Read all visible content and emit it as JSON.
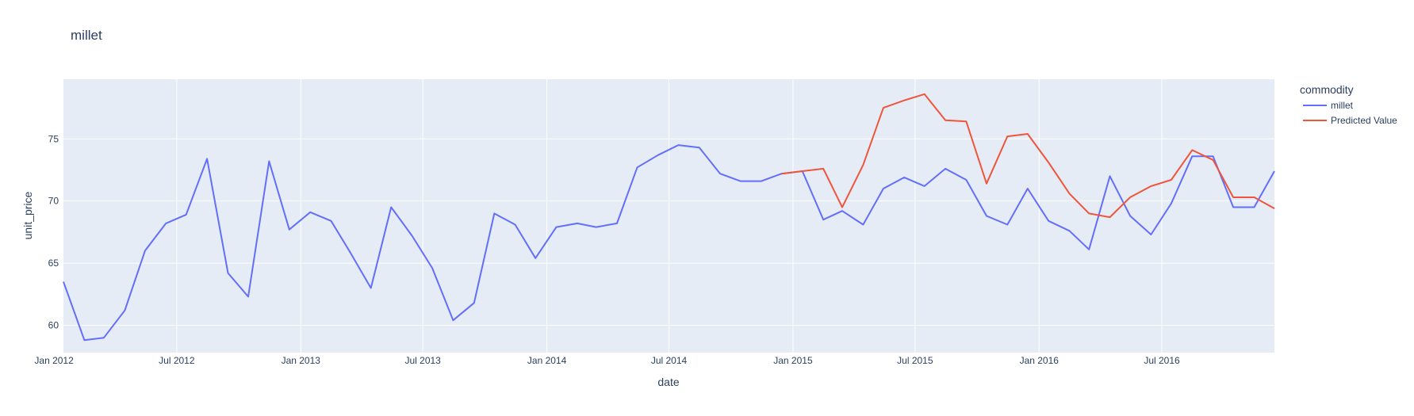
{
  "chart_data": {
    "type": "line",
    "title": "millet",
    "xlabel": "date",
    "ylabel": "unit_price",
    "x_range": [
      "2012-01-15",
      "2016-12-15"
    ],
    "ylim": [
      57.8,
      79.8
    ],
    "x_ticks": [
      {
        "date": "2012-01-01",
        "label": "Jan 2012"
      },
      {
        "date": "2012-07-01",
        "label": "Jul 2012"
      },
      {
        "date": "2013-01-01",
        "label": "Jan 2013"
      },
      {
        "date": "2013-07-01",
        "label": "Jul 2013"
      },
      {
        "date": "2014-01-01",
        "label": "Jan 2014"
      },
      {
        "date": "2014-07-01",
        "label": "Jul 2014"
      },
      {
        "date": "2015-01-01",
        "label": "Jan 2015"
      },
      {
        "date": "2015-07-01",
        "label": "Jul 2015"
      },
      {
        "date": "2016-01-01",
        "label": "Jan 2016"
      },
      {
        "date": "2016-07-01",
        "label": "Jul 2016"
      }
    ],
    "y_ticks": [
      60,
      65,
      70,
      75
    ],
    "grid": true,
    "legend": {
      "title": "commodity",
      "placement": "right"
    },
    "series": [
      {
        "name": "millet",
        "color": "#636efa",
        "x": [
          "2012-01-15",
          "2012-02-15",
          "2012-03-15",
          "2012-04-15",
          "2012-05-15",
          "2012-06-15",
          "2012-07-15",
          "2012-08-15",
          "2012-09-15",
          "2012-10-15",
          "2012-11-15",
          "2012-12-15",
          "2013-01-15",
          "2013-02-15",
          "2013-03-15",
          "2013-04-15",
          "2013-05-15",
          "2013-06-15",
          "2013-07-15",
          "2013-08-15",
          "2013-09-15",
          "2013-10-15",
          "2013-11-15",
          "2013-12-15",
          "2014-01-15",
          "2014-02-15",
          "2014-03-15",
          "2014-04-15",
          "2014-05-15",
          "2014-06-15",
          "2014-07-15",
          "2014-08-15",
          "2014-09-15",
          "2014-10-15",
          "2014-11-15",
          "2014-12-15",
          "2015-01-15",
          "2015-02-15",
          "2015-03-15",
          "2015-04-15",
          "2015-05-15",
          "2015-06-15",
          "2015-07-15",
          "2015-08-15",
          "2015-09-15",
          "2015-10-15",
          "2015-11-15",
          "2015-12-15",
          "2016-01-15",
          "2016-02-15",
          "2016-03-15",
          "2016-04-15",
          "2016-05-15",
          "2016-06-15",
          "2016-07-15",
          "2016-08-15",
          "2016-09-15",
          "2016-10-15",
          "2016-11-15",
          "2016-12-15"
        ],
        "y": [
          63.5,
          58.8,
          59.0,
          61.2,
          66.0,
          68.2,
          68.9,
          73.4,
          64.2,
          62.3,
          73.2,
          67.7,
          69.1,
          68.4,
          65.9,
          63.0,
          69.5,
          67.2,
          64.6,
          60.4,
          61.8,
          69.0,
          68.1,
          65.4,
          67.9,
          68.2,
          67.9,
          68.2,
          72.7,
          73.7,
          74.5,
          74.3,
          72.2,
          71.6,
          71.6,
          72.2,
          72.4,
          68.5,
          69.2,
          68.1,
          71.0,
          71.9,
          71.2,
          72.6,
          71.7,
          68.8,
          68.1,
          71.0,
          68.4,
          67.6,
          66.1,
          72.0,
          68.8,
          67.3,
          69.8,
          73.6,
          73.6,
          69.5,
          69.5,
          72.4
        ]
      },
      {
        "name": "Predicted Value",
        "color": "#ef553b",
        "x": [
          "2014-12-15",
          "2015-01-15",
          "2015-02-15",
          "2015-03-15",
          "2015-04-15",
          "2015-05-15",
          "2015-06-15",
          "2015-07-15",
          "2015-08-15",
          "2015-09-15",
          "2015-10-15",
          "2015-11-15",
          "2015-12-15",
          "2016-01-15",
          "2016-02-15",
          "2016-03-15",
          "2016-04-15",
          "2016-05-15",
          "2016-06-15",
          "2016-07-15",
          "2016-08-15",
          "2016-09-15",
          "2016-10-15",
          "2016-11-15",
          "2016-12-15"
        ],
        "y": [
          72.2,
          72.4,
          72.6,
          69.5,
          72.9,
          77.5,
          78.1,
          78.6,
          76.5,
          76.4,
          71.4,
          75.2,
          75.4,
          73.1,
          70.6,
          69.0,
          68.7,
          70.3,
          71.2,
          71.7,
          74.1,
          73.3,
          70.3,
          70.3,
          69.4
        ]
      }
    ]
  }
}
